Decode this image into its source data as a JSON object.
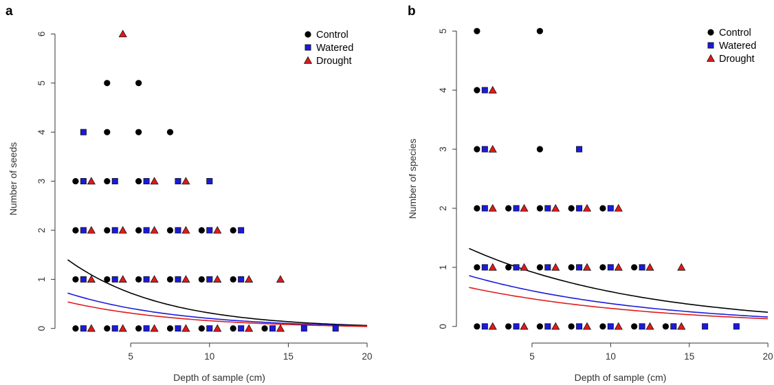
{
  "chart_data": [
    {
      "panel": "a",
      "type": "scatter",
      "xlabel": "Depth of sample (cm)",
      "ylabel": "Number of seeds",
      "xlim": [
        0.5,
        21
      ],
      "ylim": [
        -0.2,
        6.3
      ],
      "xticks": [
        5,
        10,
        15,
        20
      ],
      "yticks": [
        0,
        1,
        2,
        3,
        4,
        5,
        6
      ],
      "legend": {
        "position": "top-right",
        "entries": [
          "Control",
          "Watered",
          "Drought"
        ]
      },
      "grid": false,
      "series": [
        {
          "name": "Control",
          "marker": "circle",
          "color": "#000000",
          "points": [
            [
              1.5,
              0
            ],
            [
              3.5,
              0
            ],
            [
              5.5,
              0
            ],
            [
              7.5,
              0
            ],
            [
              9.5,
              0
            ],
            [
              11.5,
              0
            ],
            [
              13.5,
              0
            ],
            [
              1.5,
              1
            ],
            [
              3.5,
              1
            ],
            [
              5.5,
              1
            ],
            [
              7.5,
              1
            ],
            [
              9.5,
              1
            ],
            [
              11.5,
              1
            ],
            [
              1.5,
              2
            ],
            [
              3.5,
              2
            ],
            [
              5.5,
              2
            ],
            [
              7.5,
              2
            ],
            [
              9.5,
              2
            ],
            [
              11.5,
              2
            ],
            [
              1.5,
              3
            ],
            [
              3.5,
              3
            ],
            [
              5.5,
              3
            ],
            [
              3.5,
              4
            ],
            [
              5.5,
              4
            ],
            [
              7.5,
              4
            ],
            [
              3.5,
              5
            ],
            [
              5.5,
              5
            ]
          ]
        },
        {
          "name": "Watered",
          "marker": "square",
          "color": "#1a1adc",
          "points": [
            [
              2,
              0
            ],
            [
              4,
              0
            ],
            [
              6,
              0
            ],
            [
              8,
              0
            ],
            [
              10,
              0
            ],
            [
              12,
              0
            ],
            [
              14,
              0
            ],
            [
              16,
              0
            ],
            [
              18,
              0
            ],
            [
              2,
              1
            ],
            [
              4,
              1
            ],
            [
              6,
              1
            ],
            [
              8,
              1
            ],
            [
              10,
              1
            ],
            [
              12,
              1
            ],
            [
              2,
              2
            ],
            [
              4,
              2
            ],
            [
              6,
              2
            ],
            [
              8,
              2
            ],
            [
              10,
              2
            ],
            [
              12,
              2
            ],
            [
              2,
              3
            ],
            [
              4,
              3
            ],
            [
              6,
              3
            ],
            [
              8,
              3
            ],
            [
              10,
              3
            ],
            [
              2,
              4
            ]
          ]
        },
        {
          "name": "Drought",
          "marker": "triangle",
          "color": "#e01a1a",
          "points": [
            [
              2.5,
              0
            ],
            [
              4.5,
              0
            ],
            [
              6.5,
              0
            ],
            [
              8.5,
              0
            ],
            [
              10.5,
              0
            ],
            [
              12.5,
              0
            ],
            [
              14.5,
              0
            ],
            [
              2.5,
              1
            ],
            [
              4.5,
              1
            ],
            [
              6.5,
              1
            ],
            [
              8.5,
              1
            ],
            [
              10.5,
              1
            ],
            [
              12.5,
              1
            ],
            [
              14.5,
              1
            ],
            [
              2.5,
              2
            ],
            [
              4.5,
              2
            ],
            [
              6.5,
              2
            ],
            [
              8.5,
              2
            ],
            [
              10.5,
              2
            ],
            [
              2.5,
              3
            ],
            [
              6.5,
              3
            ],
            [
              8.5,
              3
            ],
            [
              4.5,
              6
            ]
          ]
        }
      ],
      "fitted_curves": [
        {
          "name": "Control",
          "color": "#000000",
          "x": [
            1,
            20
          ],
          "y": [
            1.4,
            0.06
          ]
        },
        {
          "name": "Watered",
          "color": "#1a1adc",
          "x": [
            1,
            20
          ],
          "y": [
            0.72,
            0.05
          ]
        },
        {
          "name": "Drought",
          "color": "#e01a1a",
          "x": [
            1,
            20
          ],
          "y": [
            0.54,
            0.04
          ]
        }
      ]
    },
    {
      "panel": "b",
      "type": "scatter",
      "xlabel": "Depth of sample (cm)",
      "ylabel": "Number of species",
      "xlim": [
        0.5,
        21
      ],
      "ylim": [
        -0.2,
        5.2
      ],
      "xticks": [
        5,
        10,
        15,
        20
      ],
      "yticks": [
        0,
        1,
        2,
        3,
        4,
        5
      ],
      "legend": {
        "position": "top-right",
        "entries": [
          "Control",
          "Watered",
          "Drought"
        ]
      },
      "grid": false,
      "series": [
        {
          "name": "Control",
          "marker": "circle",
          "color": "#000000",
          "points": [
            [
              1.5,
              0
            ],
            [
              3.5,
              0
            ],
            [
              5.5,
              0
            ],
            [
              7.5,
              0
            ],
            [
              9.5,
              0
            ],
            [
              11.5,
              0
            ],
            [
              13.5,
              0
            ],
            [
              1.5,
              1
            ],
            [
              3.5,
              1
            ],
            [
              5.5,
              1
            ],
            [
              7.5,
              1
            ],
            [
              9.5,
              1
            ],
            [
              11.5,
              1
            ],
            [
              1.5,
              2
            ],
            [
              3.5,
              2
            ],
            [
              5.5,
              2
            ],
            [
              7.5,
              2
            ],
            [
              9.5,
              2
            ],
            [
              1.5,
              3
            ],
            [
              5.5,
              3
            ],
            [
              1.5,
              4
            ],
            [
              1.5,
              5
            ],
            [
              5.5,
              5
            ]
          ]
        },
        {
          "name": "Watered",
          "marker": "square",
          "color": "#1a1adc",
          "points": [
            [
              2,
              0
            ],
            [
              4,
              0
            ],
            [
              6,
              0
            ],
            [
              8,
              0
            ],
            [
              10,
              0
            ],
            [
              12,
              0
            ],
            [
              14,
              0
            ],
            [
              16,
              0
            ],
            [
              18,
              0
            ],
            [
              2,
              1
            ],
            [
              4,
              1
            ],
            [
              6,
              1
            ],
            [
              8,
              1
            ],
            [
              10,
              1
            ],
            [
              12,
              1
            ],
            [
              2,
              2
            ],
            [
              4,
              2
            ],
            [
              6,
              2
            ],
            [
              8,
              2
            ],
            [
              10,
              2
            ],
            [
              2,
              3
            ],
            [
              8,
              3
            ],
            [
              2,
              4
            ]
          ]
        },
        {
          "name": "Drought",
          "marker": "triangle",
          "color": "#e01a1a",
          "points": [
            [
              2.5,
              0
            ],
            [
              4.5,
              0
            ],
            [
              6.5,
              0
            ],
            [
              8.5,
              0
            ],
            [
              10.5,
              0
            ],
            [
              12.5,
              0
            ],
            [
              14.5,
              0
            ],
            [
              2.5,
              1
            ],
            [
              4.5,
              1
            ],
            [
              6.5,
              1
            ],
            [
              8.5,
              1
            ],
            [
              10.5,
              1
            ],
            [
              12.5,
              1
            ],
            [
              14.5,
              1
            ],
            [
              2.5,
              2
            ],
            [
              4.5,
              2
            ],
            [
              6.5,
              2
            ],
            [
              8.5,
              2
            ],
            [
              10.5,
              2
            ],
            [
              2.5,
              3
            ],
            [
              2.5,
              4
            ]
          ]
        }
      ],
      "fitted_curves": [
        {
          "name": "Control",
          "color": "#000000",
          "x": [
            1,
            20
          ],
          "y": [
            1.32,
            0.24
          ]
        },
        {
          "name": "Watered",
          "color": "#1a1adc",
          "x": [
            1,
            20
          ],
          "y": [
            0.86,
            0.16
          ]
        },
        {
          "name": "Drought",
          "color": "#e01a1a",
          "x": [
            1,
            20
          ],
          "y": [
            0.66,
            0.13
          ]
        }
      ]
    }
  ]
}
